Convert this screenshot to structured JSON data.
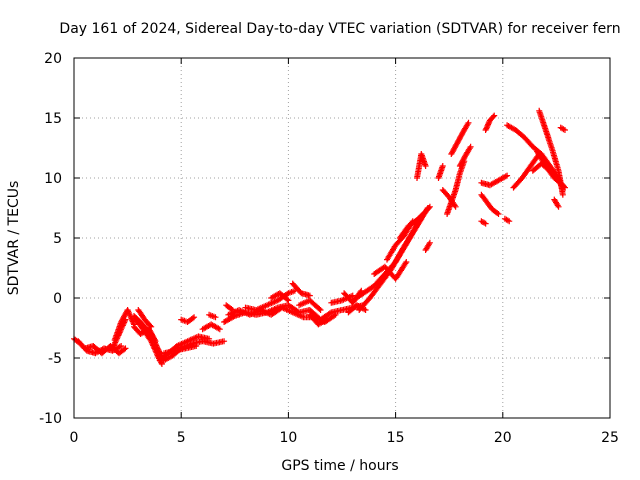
{
  "chart_data": {
    "type": "scatter",
    "title": "Day 161 of 2024, Sidereal Day-to-day VTEC variation (SDTVAR) for receiver fern",
    "xlabel": "GPS time / hours",
    "ylabel": "SDTVAR / TECUs",
    "xlim": [
      0,
      25
    ],
    "ylim": [
      -10,
      20
    ],
    "xticks": [
      0,
      5,
      10,
      15,
      20,
      25
    ],
    "yticks": [
      -10,
      -5,
      0,
      5,
      10,
      15,
      20
    ],
    "grid": true,
    "marker": "+",
    "series_color": "#ff0000",
    "series": [
      {
        "name": "SDTVAR",
        "tracks": [
          [
            [
              0.0,
              -3.4
            ],
            [
              0.3,
              -3.8
            ],
            [
              0.6,
              -4.4
            ],
            [
              1.0,
              -4.6
            ],
            [
              1.4,
              -4.2
            ],
            [
              1.8,
              -4.4
            ],
            [
              2.2,
              -4.0
            ]
          ],
          [
            [
              0.2,
              -3.6
            ],
            [
              0.5,
              -4.2
            ],
            [
              0.9,
              -4.0
            ],
            [
              1.3,
              -4.6
            ],
            [
              1.7,
              -4.0
            ],
            [
              2.1,
              -4.6
            ],
            [
              2.4,
              -4.2
            ]
          ],
          [
            [
              1.9,
              -3.5
            ],
            [
              2.2,
              -2.0
            ],
            [
              2.5,
              -1.0
            ],
            [
              2.8,
              -2.2
            ]
          ],
          [
            [
              1.8,
              -4.2
            ],
            [
              2.1,
              -3.0
            ],
            [
              2.4,
              -1.8
            ]
          ],
          [
            [
              2.8,
              -1.5
            ],
            [
              3.2,
              -2.2
            ],
            [
              3.6,
              -3.0
            ],
            [
              3.9,
              -4.2
            ],
            [
              4.2,
              -5.2
            ],
            [
              4.6,
              -4.8
            ],
            [
              5.0,
              -4.2
            ],
            [
              5.5,
              -3.8
            ],
            [
              6.0,
              -3.6
            ],
            [
              6.5,
              -3.8
            ],
            [
              7.0,
              -3.6
            ]
          ],
          [
            [
              2.9,
              -1.8
            ],
            [
              3.3,
              -2.8
            ],
            [
              3.6,
              -3.6
            ],
            [
              3.9,
              -4.8
            ],
            [
              4.1,
              -5.5
            ]
          ],
          [
            [
              2.8,
              -2.4
            ],
            [
              3.1,
              -3.0
            ],
            [
              3.5,
              -2.6
            ],
            [
              3.8,
              -3.6
            ]
          ],
          [
            [
              3.0,
              -1.0
            ],
            [
              3.3,
              -1.8
            ],
            [
              3.6,
              -2.4
            ]
          ],
          [
            [
              4.0,
              -5.2
            ],
            [
              4.4,
              -4.6
            ],
            [
              4.8,
              -4.0
            ],
            [
              5.3,
              -3.6
            ],
            [
              5.8,
              -3.2
            ],
            [
              6.3,
              -3.4
            ]
          ],
          [
            [
              4.2,
              -4.6
            ],
            [
              4.7,
              -4.4
            ],
            [
              5.2,
              -4.2
            ],
            [
              5.7,
              -4.0
            ]
          ],
          [
            [
              5.0,
              -1.8
            ],
            [
              5.3,
              -2.0
            ],
            [
              5.6,
              -1.6
            ]
          ],
          [
            [
              6.0,
              -2.6
            ],
            [
              6.4,
              -2.2
            ],
            [
              6.8,
              -2.6
            ]
          ],
          [
            [
              6.3,
              -1.4
            ],
            [
              6.6,
              -1.6
            ]
          ],
          [
            [
              7.0,
              -2.0
            ],
            [
              7.5,
              -1.5
            ],
            [
              8.0,
              -1.2
            ],
            [
              8.5,
              -1.4
            ],
            [
              9.0,
              -1.2
            ],
            [
              9.5,
              -0.8
            ],
            [
              10.0,
              -0.6
            ],
            [
              10.5,
              -1.2
            ],
            [
              11.0,
              -1.0
            ],
            [
              11.5,
              -1.8
            ],
            [
              12.0,
              -1.2
            ],
            [
              12.5,
              -1.0
            ],
            [
              13.0,
              -0.8
            ],
            [
              13.5,
              -0.6
            ]
          ],
          [
            [
              7.2,
              -1.4
            ],
            [
              7.7,
              -1.0
            ],
            [
              8.2,
              -1.4
            ],
            [
              8.7,
              -1.0
            ],
            [
              9.2,
              -1.4
            ],
            [
              9.7,
              -0.8
            ],
            [
              10.2,
              -1.2
            ],
            [
              10.7,
              -1.6
            ],
            [
              11.2,
              -1.6
            ],
            [
              11.7,
              -2.0
            ],
            [
              12.2,
              -1.4
            ]
          ],
          [
            [
              7.1,
              -0.6
            ],
            [
              7.4,
              -1.0
            ]
          ],
          [
            [
              8.0,
              -0.8
            ],
            [
              8.5,
              -1.0
            ],
            [
              9.0,
              -0.6
            ],
            [
              9.5,
              -0.2
            ],
            [
              10.0,
              0.4
            ],
            [
              10.3,
              0.6
            ]
          ],
          [
            [
              9.2,
              0.0
            ],
            [
              9.6,
              0.4
            ],
            [
              10.0,
              -0.2
            ]
          ],
          [
            [
              10.2,
              1.2
            ],
            [
              10.6,
              0.4
            ],
            [
              11.0,
              0.2
            ]
          ],
          [
            [
              10.5,
              -0.6
            ],
            [
              11.0,
              -0.2
            ],
            [
              11.5,
              -1.0
            ]
          ],
          [
            [
              11.0,
              -1.4
            ],
            [
              11.4,
              -2.2
            ],
            [
              11.8,
              -1.8
            ]
          ],
          [
            [
              12.0,
              -0.4
            ],
            [
              12.5,
              -0.2
            ],
            [
              13.0,
              0.2
            ]
          ],
          [
            [
              12.6,
              0.4
            ],
            [
              13.0,
              -0.4
            ],
            [
              13.4,
              0.6
            ]
          ],
          [
            [
              12.8,
              -1.2
            ],
            [
              13.2,
              -0.6
            ],
            [
              13.6,
              -1.0
            ]
          ],
          [
            [
              13.0,
              -0.2
            ],
            [
              13.5,
              0.4
            ],
            [
              14.0,
              1.0
            ],
            [
              14.5,
              2.0
            ],
            [
              15.0,
              3.0
            ],
            [
              15.5,
              4.5
            ],
            [
              16.0,
              6.0
            ],
            [
              16.5,
              7.5
            ]
          ],
          [
            [
              13.3,
              -1.0
            ],
            [
              13.8,
              0.0
            ],
            [
              14.3,
              1.2
            ],
            [
              14.8,
              2.4
            ],
            [
              15.3,
              4.0
            ],
            [
              15.8,
              5.5
            ],
            [
              16.3,
              7.0
            ]
          ],
          [
            [
              14.0,
              2.0
            ],
            [
              14.5,
              2.6
            ],
            [
              15.0,
              1.6
            ],
            [
              15.5,
              3.0
            ]
          ],
          [
            [
              15.2,
              5.0
            ],
            [
              15.6,
              6.0
            ],
            [
              16.0,
              6.5
            ],
            [
              16.4,
              7.2
            ],
            [
              16.6,
              7.6
            ]
          ],
          [
            [
              14.6,
              3.2
            ],
            [
              15.0,
              4.4
            ],
            [
              15.4,
              5.2
            ],
            [
              15.8,
              6.4
            ]
          ],
          [
            [
              16.4,
              4.0
            ],
            [
              16.6,
              4.6
            ]
          ],
          [
            [
              16.0,
              10.0
            ],
            [
              16.2,
              12.0
            ],
            [
              16.4,
              11.0
            ]
          ],
          [
            [
              17.0,
              10.0
            ],
            [
              17.2,
              11.0
            ]
          ],
          [
            [
              17.4,
              7.0
            ],
            [
              17.6,
              8.0
            ],
            [
              17.8,
              9.0
            ],
            [
              18.0,
              10.4
            ],
            [
              18.2,
              11.4
            ]
          ],
          [
            [
              17.6,
              12.0
            ],
            [
              17.9,
              13.0
            ],
            [
              18.2,
              14.0
            ],
            [
              18.4,
              14.6
            ]
          ],
          [
            [
              17.2,
              9.0
            ],
            [
              17.5,
              8.4
            ],
            [
              17.8,
              7.6
            ]
          ],
          [
            [
              18.0,
              11.0
            ],
            [
              18.3,
              12.0
            ],
            [
              18.5,
              12.6
            ]
          ],
          [
            [
              19.2,
              14.0
            ],
            [
              19.4,
              14.8
            ],
            [
              19.6,
              15.2
            ]
          ],
          [
            [
              19.0,
              9.6
            ],
            [
              19.4,
              9.4
            ],
            [
              19.8,
              9.8
            ],
            [
              20.2,
              10.2
            ]
          ],
          [
            [
              19.0,
              8.6
            ],
            [
              19.5,
              7.4
            ],
            [
              19.8,
              7.0
            ]
          ],
          [
            [
              19.0,
              6.4
            ],
            [
              19.2,
              6.2
            ]
          ],
          [
            [
              20.1,
              6.6
            ],
            [
              20.3,
              6.4
            ]
          ],
          [
            [
              20.2,
              14.4
            ],
            [
              20.6,
              14.0
            ],
            [
              21.0,
              13.4
            ],
            [
              21.4,
              12.6
            ],
            [
              21.8,
              12.0
            ],
            [
              22.2,
              11.0
            ],
            [
              22.6,
              10.0
            ],
            [
              22.8,
              9.0
            ]
          ],
          [
            [
              20.5,
              9.2
            ],
            [
              20.9,
              10.0
            ],
            [
              21.3,
              11.0
            ],
            [
              21.7,
              12.0
            ]
          ],
          [
            [
              21.7,
              15.6
            ],
            [
              22.0,
              14.0
            ],
            [
              22.3,
              12.4
            ],
            [
              22.6,
              10.6
            ],
            [
              22.8,
              8.6
            ]
          ],
          [
            [
              21.6,
              12.2
            ],
            [
              22.0,
              11.0
            ],
            [
              22.4,
              10.0
            ],
            [
              22.8,
              9.4
            ]
          ],
          [
            [
              21.4,
              10.6
            ],
            [
              21.8,
              11.2
            ],
            [
              22.2,
              10.6
            ],
            [
              22.6,
              9.8
            ],
            [
              22.9,
              9.2
            ]
          ],
          [
            [
              22.4,
              8.2
            ],
            [
              22.6,
              7.6
            ]
          ],
          [
            [
              22.7,
              14.2
            ],
            [
              22.9,
              14.0
            ]
          ]
        ]
      }
    ]
  }
}
